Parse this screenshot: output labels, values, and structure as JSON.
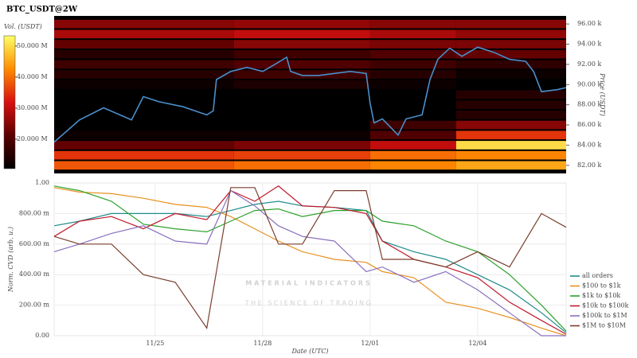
{
  "watermark": {
    "title": "MATERIAL INDICATORS",
    "subtitle": "THE SCIENCE OF TRADING"
  },
  "chart_data": [
    {
      "type": "heatmap",
      "title": "BTC_USDT@2W",
      "y_label": "Price (USDT)",
      "colorbar_label": "Vol. (USDT)",
      "x_edges": [
        22.18,
        27.2,
        31.0,
        33.4,
        36.47
      ],
      "y_edges": [
        81500,
        82500,
        83500,
        84500,
        85500,
        86500,
        87500,
        88500,
        89500,
        90500,
        91500,
        92500,
        93500,
        94500,
        95500,
        96500
      ],
      "z": [
        [
          38000000,
          40000000,
          42000000,
          45000000
        ],
        [
          35000000,
          36000000,
          40000000,
          42000000
        ],
        [
          22000000,
          24000000,
          30000000,
          50000000
        ],
        [
          12000000,
          12000000,
          20000000,
          35000000
        ],
        [
          10000000,
          10000000,
          18000000,
          25000000
        ],
        [
          8000000,
          8000000,
          10000000,
          15000000
        ],
        [
          8000000,
          8000000,
          10000000,
          15000000
        ],
        [
          8000000,
          8000000,
          10000000,
          15000000
        ],
        [
          12000000,
          14000000,
          12000000,
          10000000
        ],
        [
          15000000,
          18000000,
          15000000,
          12000000
        ],
        [
          18000000,
          20000000,
          18000000,
          16000000
        ],
        [
          15000000,
          18000000,
          20000000,
          22000000
        ],
        [
          22000000,
          25000000,
          24000000,
          24000000
        ],
        [
          28000000,
          30000000,
          28000000,
          26000000
        ],
        [
          25000000,
          26000000,
          25000000,
          25000000
        ]
      ],
      "zlim": [
        10500000,
        53300000
      ],
      "zticks": [
        {
          "value": 20000000,
          "label": "20.000 M"
        },
        {
          "value": 30000000,
          "label": "30.000 M"
        },
        {
          "value": 40000000,
          "label": "40.000 M"
        },
        {
          "value": 50000000,
          "label": "50.000 M"
        }
      ],
      "colorscale": [
        "#000000",
        "#5a0000",
        "#d81010",
        "#ff8c00",
        "#ffff66"
      ],
      "xlim": [
        22.18,
        36.47
      ],
      "ylim": [
        81200,
        96800
      ],
      "yticks": [
        {
          "value": 82000,
          "label": "82.00 k"
        },
        {
          "value": 84000,
          "label": "84.00 k"
        },
        {
          "value": 86000,
          "label": "86.00 k"
        },
        {
          "value": 88000,
          "label": "88.00 k"
        },
        {
          "value": 90000,
          "label": "90.00 k"
        },
        {
          "value": 92000,
          "label": "92.00 k"
        },
        {
          "value": 94000,
          "label": "94.00 k"
        },
        {
          "value": 96000,
          "label": "96.00 k"
        }
      ],
      "price": {
        "color": "#4a8fcc",
        "x": [
          22.18,
          22.89,
          23.56,
          24.34,
          24.67,
          25.11,
          25.78,
          26.44,
          26.62,
          26.71,
          27.11,
          27.56,
          28.0,
          28.34,
          28.67,
          28.78,
          29.11,
          29.56,
          30.0,
          30.45,
          30.89,
          31.0,
          31.11,
          31.34,
          31.56,
          31.78,
          32.0,
          32.45,
          32.67,
          32.89,
          33.22,
          33.56,
          34.0,
          34.45,
          34.89,
          35.34,
          35.56,
          35.78,
          36.22,
          36.47
        ],
        "values": [
          84300,
          86500,
          87700,
          86500,
          88800,
          88300,
          87800,
          87000,
          87400,
          90500,
          91300,
          91700,
          91300,
          92000,
          92700,
          91300,
          90900,
          90900,
          91100,
          91300,
          91100,
          88100,
          86200,
          86600,
          85800,
          85000,
          86600,
          87000,
          90500,
          92500,
          93600,
          92800,
          93700,
          93200,
          92500,
          92300,
          91300,
          89300,
          89500,
          89700
        ]
      }
    },
    {
      "type": "line",
      "y_label": "Norm. CVD (arb. u.)",
      "x_label": "Date (UTC)",
      "x": [
        22.18,
        22.89,
        23.78,
        24.67,
        25.56,
        26.44,
        27.11,
        27.78,
        28.44,
        29.11,
        30.0,
        30.89,
        31.34,
        32.22,
        33.11,
        34.0,
        34.89,
        35.78,
        36.47
      ],
      "xlim": [
        22.18,
        36.47
      ],
      "xticks": [
        {
          "value": 25,
          "label": "11/25"
        },
        {
          "value": 28,
          "label": "11/28"
        },
        {
          "value": 31,
          "label": "12/01"
        },
        {
          "value": 34,
          "label": "12/04"
        }
      ],
      "ylim": [
        0,
        1
      ],
      "yticks": [
        {
          "value": 0,
          "label": "0.00"
        },
        {
          "value": 0.2,
          "label": "200.00 m"
        },
        {
          "value": 0.4,
          "label": "400.00 m"
        },
        {
          "value": 0.6,
          "label": "600.00 m"
        },
        {
          "value": 0.8,
          "label": "800.00 m"
        },
        {
          "value": 1,
          "label": "1.00"
        }
      ],
      "grid": true,
      "legend": "right",
      "series": [
        {
          "name": "all orders",
          "color": "#1f8a8a",
          "values": [
            0.72,
            0.75,
            0.8,
            0.8,
            0.8,
            0.78,
            0.82,
            0.86,
            0.88,
            0.85,
            0.84,
            0.82,
            0.62,
            0.55,
            0.5,
            0.4,
            0.3,
            0.15,
            0.02
          ]
        },
        {
          "name": "$100 to $1k",
          "color": "#e8901e",
          "values": [
            0.97,
            0.94,
            0.93,
            0.9,
            0.86,
            0.84,
            0.78,
            0.7,
            0.62,
            0.55,
            0.5,
            0.48,
            0.42,
            0.38,
            0.22,
            0.18,
            0.12,
            0.05,
            0.0
          ]
        },
        {
          "name": "$1k to $10k",
          "color": "#2ca02c",
          "values": [
            0.98,
            0.95,
            0.88,
            0.73,
            0.7,
            0.68,
            0.75,
            0.82,
            0.83,
            0.78,
            0.82,
            0.82,
            0.75,
            0.72,
            0.62,
            0.55,
            0.4,
            0.2,
            0.03
          ]
        },
        {
          "name": "$10k to $100k",
          "color": "#c0182a",
          "values": [
            0.65,
            0.75,
            0.78,
            0.7,
            0.8,
            0.76,
            0.95,
            0.88,
            0.98,
            0.85,
            0.84,
            0.8,
            0.62,
            0.5,
            0.45,
            0.38,
            0.22,
            0.1,
            0.01
          ]
        },
        {
          "name": "$100k to $1M",
          "color": "#8a6fc0",
          "values": [
            0.55,
            0.6,
            0.67,
            0.72,
            0.62,
            0.6,
            0.95,
            0.85,
            0.72,
            0.65,
            0.62,
            0.42,
            0.45,
            0.35,
            0.42,
            0.3,
            0.15,
            0.0,
            0.0
          ]
        },
        {
          "name": "$1M to $10M",
          "color": "#7b3f2e",
          "values": [
            0.65,
            0.6,
            0.6,
            0.4,
            0.35,
            0.05,
            0.97,
            0.97,
            0.6,
            0.6,
            0.95,
            0.95,
            0.5,
            0.5,
            0.45,
            0.55,
            0.45,
            0.8,
            0.71
          ]
        }
      ]
    }
  ]
}
